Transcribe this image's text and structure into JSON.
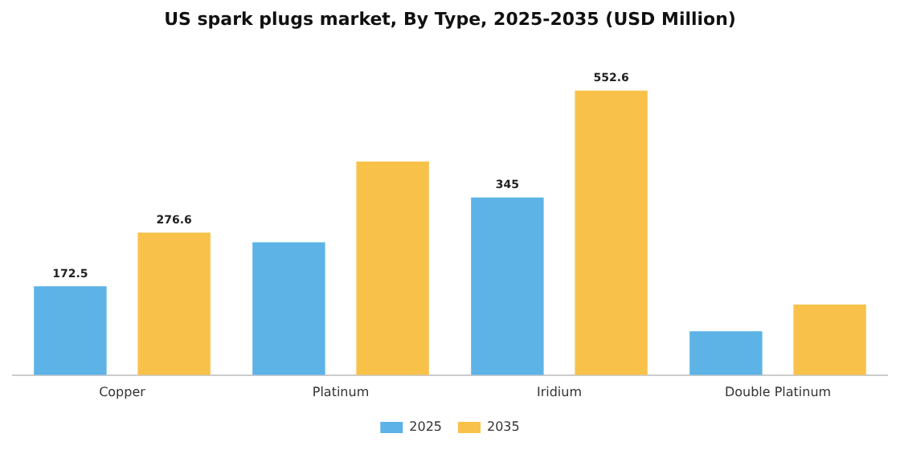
{
  "chart_data": {
    "type": "bar",
    "title": "US spark plugs market, By Type, 2025-2035 (USD Million)",
    "categories": [
      "Copper",
      "Platinum",
      "Iridium",
      "Double Platinum"
    ],
    "series": [
      {
        "name": "2025",
        "color": "#5db3e6",
        "values": [
          172.5,
          258,
          345,
          85
        ],
        "value_labels": [
          "172.5",
          null,
          "345",
          null
        ]
      },
      {
        "name": "2035",
        "color": "#f8c24a",
        "values": [
          276.6,
          415,
          552.6,
          137
        ],
        "value_labels": [
          "276.6",
          null,
          "552.6",
          null
        ]
      }
    ],
    "grid": false,
    "legend": "bottom",
    "tick_labels": "x"
  }
}
